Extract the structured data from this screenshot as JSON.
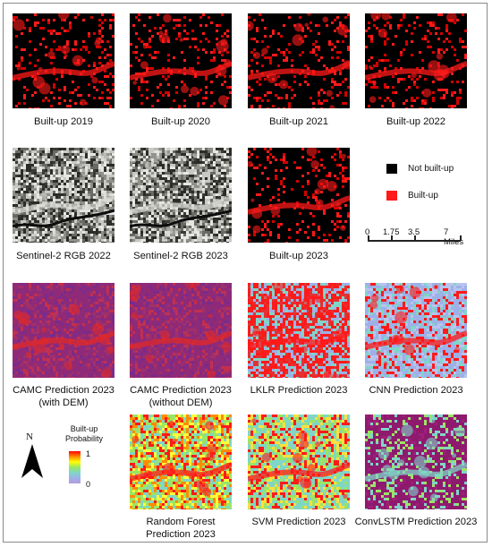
{
  "panels": [
    {
      "id": "b2019",
      "caption": "Built-up 2019",
      "style": "builtup"
    },
    {
      "id": "b2020",
      "caption": "Built-up 2020",
      "style": "builtup"
    },
    {
      "id": "b2021",
      "caption": "Built-up 2021",
      "style": "builtup"
    },
    {
      "id": "b2022",
      "caption": "Built-up 2022",
      "style": "builtup"
    },
    {
      "id": "rgb2022",
      "caption": "Sentinel-2 RGB 2022",
      "style": "rgb"
    },
    {
      "id": "rgb2023",
      "caption": "Sentinel-2 RGB 2023",
      "style": "rgb"
    },
    {
      "id": "b2023",
      "caption": "Built-up 2023",
      "style": "builtup"
    },
    {
      "id": "camc_dem",
      "caption": "CAMC Prediction 2023",
      "caption2": "(with DEM)",
      "style": "camc"
    },
    {
      "id": "camc_nodem",
      "caption": "CAMC Prediction 2023",
      "caption2": "(without DEM)",
      "style": "camc"
    },
    {
      "id": "lklr",
      "caption": "LKLR Prediction 2023",
      "style": "lklr"
    },
    {
      "id": "cnn",
      "caption": "CNN Prediction 2023",
      "style": "cnn"
    },
    {
      "id": "rf",
      "caption": "Random Forest",
      "caption2": "Prediction 2023",
      "style": "rf"
    },
    {
      "id": "svm",
      "caption": "SVM Prediction 2023",
      "style": "svm"
    },
    {
      "id": "convlstm",
      "caption": "ConvLSTM Prediction 2023",
      "style": "convlstm"
    }
  ],
  "legend": {
    "not_builtup": "Not built-up",
    "builtup": "Built-up",
    "not_builtup_color": "#000000",
    "builtup_color": "#ff1a1a"
  },
  "scale_bar": {
    "labels": [
      "0",
      "1.75",
      "3.5",
      "7 Miles"
    ]
  },
  "north_arrow": {
    "label": "N"
  },
  "probability_legend": {
    "title_line1": "Built-up",
    "title_line2": "Probability",
    "max": "1",
    "min": "0"
  }
}
